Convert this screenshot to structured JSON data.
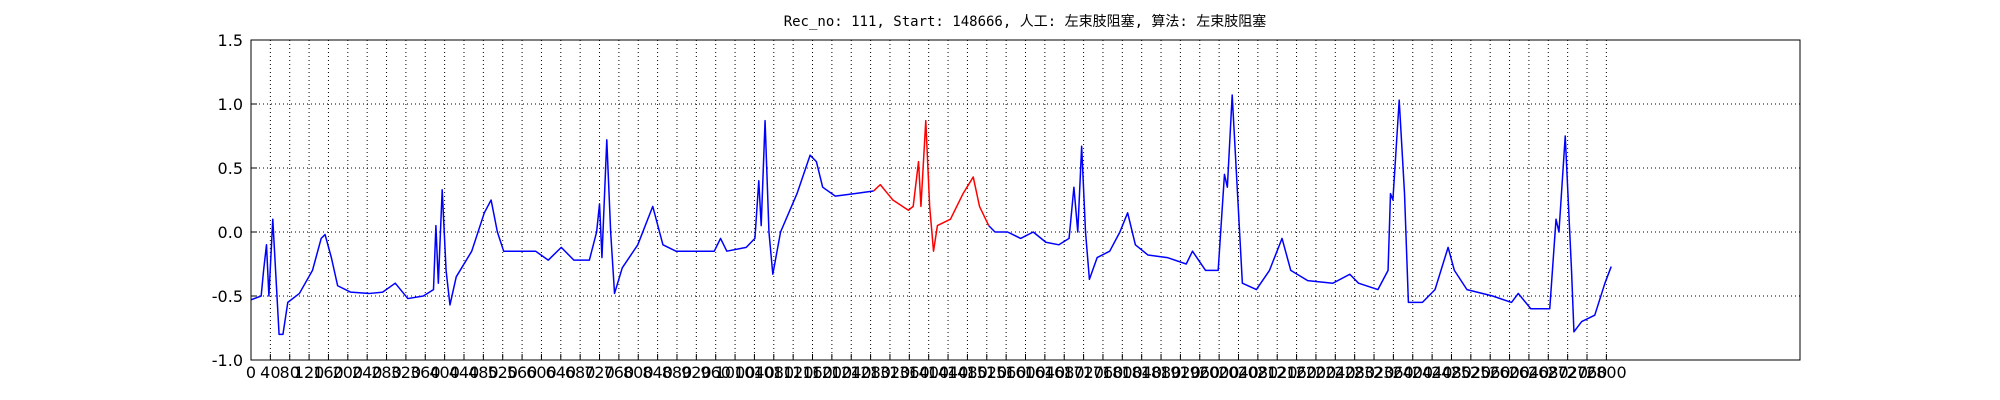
{
  "chart_data": {
    "type": "line",
    "title": "Rec_no: 111, Start: 148666, 人工: 左束肢阻塞, 算法: 左束肢阻塞",
    "series": [
      {
        "color": "#0000ff",
        "x": [
          0,
          21,
          26,
          32,
          37,
          45,
          58,
          66,
          76,
          100,
          127,
          145,
          153,
          166,
          179,
          206,
          245,
          272,
          298,
          324,
          356,
          377,
          382,
          387,
          395,
          403,
          411,
          424,
          456,
          482,
          496,
          509,
          522,
          561,
          588,
          614,
          641,
          667,
          699,
          714,
          720,
          725,
          735,
          743,
          751,
          767,
          799,
          830,
          851,
          878,
          917,
          957,
          970,
          983,
          1023,
          1041,
          1049,
          1054,
          1062,
          1070,
          1078,
          1094,
          1128,
          1155,
          1168,
          1181,
          1207,
          1247,
          1286
        ],
        "values": [
          -0.53,
          -0.5,
          -0.3,
          -0.1,
          -0.5,
          0.1,
          -0.8,
          -0.8,
          -0.55,
          -0.48,
          -0.3,
          -0.05,
          -0.02,
          -0.2,
          -0.42,
          -0.47,
          -0.48,
          -0.47,
          -0.4,
          -0.52,
          -0.5,
          -0.45,
          0.05,
          -0.4,
          0.33,
          -0.3,
          -0.57,
          -0.35,
          -0.15,
          0.15,
          0.25,
          0.0,
          -0.15,
          -0.15,
          -0.15,
          -0.22,
          -0.12,
          -0.22,
          -0.22,
          0.0,
          0.22,
          -0.2,
          0.72,
          0.0,
          -0.48,
          -0.28,
          -0.1,
          0.2,
          -0.1,
          -0.15,
          -0.15,
          -0.15,
          -0.05,
          -0.15,
          -0.12,
          -0.05,
          0.4,
          0.05,
          0.87,
          0.0,
          -0.33,
          0.0,
          0.3,
          0.6,
          0.55,
          0.35,
          0.28,
          0.3,
          0.32
        ]
      },
      {
        "color": "#ff0000",
        "x": [
          1286,
          1300,
          1326,
          1358,
          1368,
          1379,
          1384,
          1394,
          1402,
          1410,
          1418,
          1445,
          1471,
          1492,
          1505,
          1524
        ],
        "values": [
          0.32,
          0.37,
          0.25,
          0.17,
          0.2,
          0.55,
          0.2,
          0.87,
          0.2,
          -0.15,
          0.05,
          0.1,
          0.3,
          0.43,
          0.2,
          0.05
        ]
      },
      {
        "color": "#0000ff",
        "x": [
          1524,
          1537,
          1563,
          1590,
          1616,
          1642,
          1669,
          1690,
          1700,
          1708,
          1716,
          1724,
          1732,
          1748,
          1774,
          1795,
          1811,
          1827,
          1853,
          1893,
          1932,
          1945,
          1972,
          1998,
          2011,
          2017,
          2027,
          2038,
          2048,
          2077,
          2104,
          2130,
          2148,
          2183,
          2235,
          2270,
          2288,
          2328,
          2349,
          2354,
          2359,
          2372,
          2383,
          2391,
          2420,
          2446,
          2473,
          2486,
          2512,
          2565,
          2604,
          2618,
          2644,
          2683,
          2696,
          2702,
          2715,
          2728,
          2733,
          2749,
          2776,
          2797,
          2810
        ],
        "values": [
          0.05,
          0.0,
          0.0,
          -0.05,
          0.0,
          -0.08,
          -0.1,
          -0.05,
          0.35,
          0.0,
          0.67,
          0.0,
          -0.37,
          -0.2,
          -0.15,
          0.0,
          0.15,
          -0.1,
          -0.18,
          -0.2,
          -0.25,
          -0.15,
          -0.3,
          -0.3,
          0.45,
          0.35,
          1.07,
          0.3,
          -0.4,
          -0.45,
          -0.3,
          -0.05,
          -0.3,
          -0.38,
          -0.4,
          -0.33,
          -0.4,
          -0.45,
          -0.3,
          0.3,
          0.25,
          1.03,
          0.3,
          -0.55,
          -0.55,
          -0.45,
          -0.12,
          -0.3,
          -0.45,
          -0.5,
          -0.55,
          -0.48,
          -0.6,
          -0.6,
          0.1,
          0.0,
          0.75,
          -0.3,
          -0.78,
          -0.7,
          -0.65,
          -0.4,
          -0.27
        ]
      }
    ],
    "xlim": [
      0,
      3200
    ],
    "xticks": [
      0,
      40,
      80,
      120,
      160,
      200,
      240,
      280,
      320,
      360,
      400,
      440,
      480,
      520,
      560,
      600,
      640,
      680,
      720,
      760,
      800,
      840,
      880,
      920,
      960,
      1000,
      1040,
      1080,
      1120,
      1160,
      1200,
      1240,
      1280,
      1320,
      1360,
      1400,
      1440,
      1480,
      1520,
      1560,
      1600,
      1640,
      1680,
      1720,
      1760,
      1800,
      1840,
      1880,
      1920,
      1960,
      2000,
      2040,
      2080,
      2120,
      2160,
      2200,
      2240,
      2280,
      2320,
      2360,
      2400,
      2440,
      2480,
      2520,
      2560,
      2600,
      2640,
      2680,
      2720,
      2760,
      2800
    ],
    "ylim": [
      -1.0,
      1.5
    ],
    "yticks": [
      {
        "value": -1.0,
        "label": "-1.0"
      },
      -0.5,
      {
        "value": 0.0,
        "label": "0.0"
      },
      0.5,
      {
        "value": 1.0,
        "label": "1.0"
      },
      1.5
    ],
    "grid": true
  }
}
